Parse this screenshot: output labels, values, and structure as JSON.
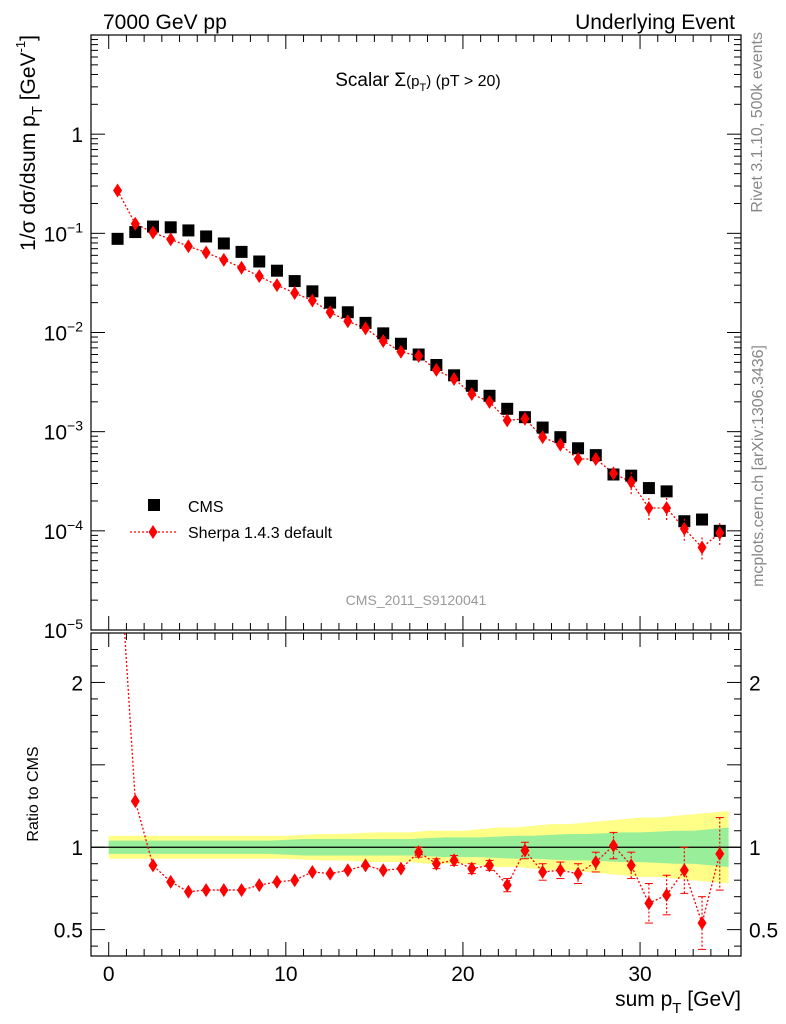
{
  "header": {
    "left": "7000 GeV pp",
    "right": "Underlying Event"
  },
  "side_labels": {
    "rivet": "Rivet 3.1.10,  500k events",
    "mcplots": "mcplots.cern.ch [arXiv:1306.3436]"
  },
  "chart_data": [
    {
      "type": "scatter",
      "title": "Scalar Σ(p_T) (pT > 20)",
      "ylabel": "1/σ dσ/dsum p_T [GeV^-1]",
      "yscale": "log",
      "ylim": [
        1e-05,
        10
      ],
      "xlim": [
        -1,
        35.7
      ],
      "watermark": "CMS_2011_S9120041",
      "legend_position": "bottom-left",
      "ytick_labels": [
        "1",
        "10^-1",
        "10^-2",
        "10^-3",
        "10^-4",
        "10^-5"
      ],
      "series": [
        {
          "name": "CMS",
          "marker": "square",
          "color": "#000000",
          "x": [
            0.5,
            1.5,
            2.5,
            3.5,
            4.5,
            5.5,
            6.5,
            7.5,
            8.5,
            9.5,
            10.5,
            11.5,
            12.5,
            13.5,
            14.5,
            15.5,
            16.5,
            17.5,
            18.5,
            19.5,
            20.5,
            21.5,
            22.5,
            23.5,
            24.5,
            25.5,
            26.5,
            27.5,
            28.5,
            29.5,
            30.5,
            31.5,
            32.5,
            33.5,
            34.5
          ],
          "y": [
            0.088,
            0.103,
            0.117,
            0.115,
            0.107,
            0.093,
            0.079,
            0.065,
            0.052,
            0.042,
            0.033,
            0.026,
            0.02,
            0.016,
            0.0125,
            0.0098,
            0.0077,
            0.006,
            0.0047,
            0.0037,
            0.0029,
            0.0023,
            0.0017,
            0.0014,
            0.0011,
            0.00088,
            0.00068,
            0.00058,
            0.00037,
            0.00036,
            0.00027,
            0.00025,
            0.000125,
            0.00013,
            0.0001
          ]
        },
        {
          "name": "Sherpa 1.4.3 default",
          "marker": "diamond",
          "line": "dotted",
          "color": "#ff0000",
          "x": [
            0.5,
            1.5,
            2.5,
            3.5,
            4.5,
            5.5,
            6.5,
            7.5,
            8.5,
            9.5,
            10.5,
            11.5,
            12.5,
            13.5,
            14.5,
            15.5,
            16.5,
            17.5,
            18.5,
            19.5,
            20.5,
            21.5,
            22.5,
            23.5,
            24.5,
            25.5,
            26.5,
            27.5,
            28.5,
            29.5,
            30.5,
            31.5,
            32.5,
            33.5,
            34.5
          ],
          "y": [
            0.27,
            0.125,
            0.102,
            0.087,
            0.074,
            0.064,
            0.054,
            0.045,
            0.037,
            0.03,
            0.025,
            0.021,
            0.016,
            0.013,
            0.011,
            0.0082,
            0.0064,
            0.0058,
            0.0042,
            0.0034,
            0.0024,
            0.002,
            0.0013,
            0.00135,
            0.00088,
            0.00074,
            0.00053,
            0.00053,
            0.00038,
            0.00031,
            0.00017,
            0.00017,
            0.000105,
            6.8e-05,
            9.5e-05
          ]
        }
      ]
    },
    {
      "type": "scatter",
      "ylabel": "Ratio to CMS",
      "xlabel": "sum p_T [GeV]",
      "ylim": [
        0.34,
        2.3
      ],
      "xlim": [
        -1,
        35.7
      ],
      "yticks": [
        0.5,
        1,
        2
      ],
      "ytick_labels": [
        "0.5",
        "1",
        "2"
      ],
      "xticks": [
        0,
        10,
        20,
        30
      ],
      "xtick_labels": [
        "0",
        "10",
        "20",
        "30"
      ],
      "bands": {
        "x": [
          0,
          1,
          2,
          3,
          4,
          5,
          6,
          7,
          8,
          9,
          10,
          11,
          12,
          13,
          14,
          15,
          16,
          17,
          18,
          19,
          20,
          21,
          22,
          23,
          24,
          25,
          26,
          27,
          28,
          29,
          30,
          31,
          32,
          33,
          34,
          35
        ],
        "inner_half_width": [
          0.04,
          0.04,
          0.04,
          0.04,
          0.04,
          0.04,
          0.04,
          0.04,
          0.04,
          0.04,
          0.045,
          0.05,
          0.05,
          0.05,
          0.05,
          0.05,
          0.05,
          0.05,
          0.055,
          0.06,
          0.06,
          0.06,
          0.065,
          0.07,
          0.07,
          0.075,
          0.08,
          0.08,
          0.085,
          0.09,
          0.09,
          0.095,
          0.1,
          0.1,
          0.11,
          0.12
        ],
        "outer_half_width": [
          0.07,
          0.07,
          0.07,
          0.07,
          0.07,
          0.07,
          0.07,
          0.07,
          0.07,
          0.07,
          0.07,
          0.075,
          0.08,
          0.08,
          0.085,
          0.09,
          0.09,
          0.09,
          0.1,
          0.1,
          0.1,
          0.11,
          0.12,
          0.12,
          0.13,
          0.14,
          0.14,
          0.15,
          0.16,
          0.17,
          0.18,
          0.18,
          0.19,
          0.2,
          0.21,
          0.22
        ],
        "inner_color": "#99ee99",
        "outer_color": "#ffff88"
      },
      "series": [
        {
          "name": "Sherpa 1.4.3 default",
          "marker": "diamond",
          "line": "dotted",
          "color": "#ff0000",
          "x": [
            1.5,
            2.5,
            3.5,
            4.5,
            5.5,
            6.5,
            7.5,
            8.5,
            9.5,
            10.5,
            11.5,
            12.5,
            13.5,
            14.5,
            15.5,
            16.5,
            17.5,
            18.5,
            19.5,
            20.5,
            21.5,
            22.5,
            23.5,
            24.5,
            25.5,
            26.5,
            27.5,
            28.5,
            29.5,
            30.5,
            31.5,
            32.5,
            33.5,
            34.5
          ],
          "y": [
            1.28,
            0.89,
            0.79,
            0.73,
            0.74,
            0.74,
            0.74,
            0.77,
            0.79,
            0.8,
            0.85,
            0.84,
            0.86,
            0.89,
            0.86,
            0.87,
            0.97,
            0.9,
            0.92,
            0.87,
            0.89,
            0.77,
            0.98,
            0.85,
            0.86,
            0.84,
            0.91,
            1.01,
            0.89,
            0.66,
            0.71,
            0.86,
            0.54,
            0.96
          ],
          "err": [
            0.02,
            0.015,
            0.015,
            0.015,
            0.015,
            0.015,
            0.015,
            0.015,
            0.015,
            0.015,
            0.015,
            0.015,
            0.015,
            0.02,
            0.02,
            0.02,
            0.03,
            0.03,
            0.03,
            0.03,
            0.03,
            0.04,
            0.05,
            0.05,
            0.05,
            0.06,
            0.06,
            0.08,
            0.08,
            0.12,
            0.12,
            0.14,
            0.16,
            0.22
          ]
        }
      ]
    }
  ]
}
